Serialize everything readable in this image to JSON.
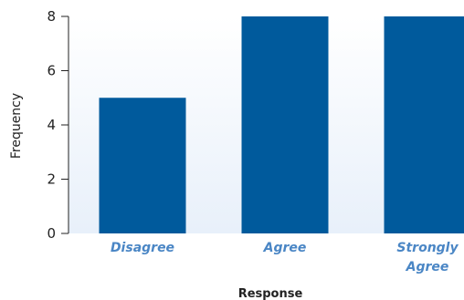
{
  "chart_data": {
    "type": "bar",
    "categories": [
      "Disagree",
      "Agree",
      "Strongly Agree"
    ],
    "category_lines": [
      [
        "Disagree"
      ],
      [
        "Agree"
      ],
      [
        "Strongly",
        "Agree"
      ]
    ],
    "values": [
      5,
      8,
      8
    ],
    "xlabel": "Response",
    "ylabel": "Frequency",
    "ylim": [
      0,
      8
    ],
    "yticks": [
      0,
      2,
      4,
      6,
      8
    ],
    "grid": false,
    "legend": "none"
  },
  "colors": {
    "bar": "#005a9c",
    "plot_background": "#eef4fb",
    "category_label": "#4a86c5",
    "axis": "#222222"
  }
}
